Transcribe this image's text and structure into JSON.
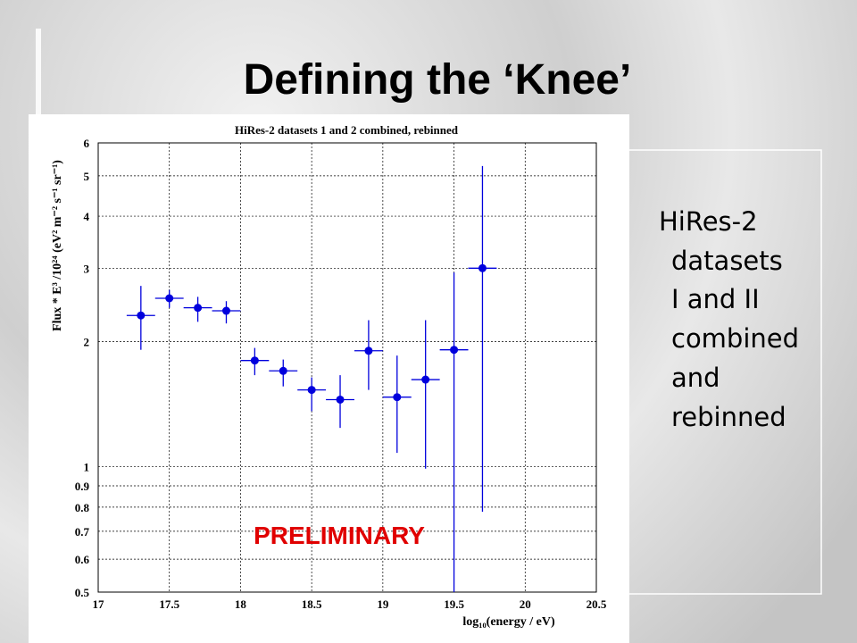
{
  "slide_title": "Defining the ‘Knee’",
  "bullet_lines": [
    "HiRes-2",
    "datasets",
    "I and II",
    "combined",
    "and",
    "rebinned"
  ],
  "chart_data": {
    "type": "errorbar",
    "title": "HiRes-2 datasets 1 and 2 combined,  rebinned",
    "x_label": "log₁₀(energy / eV)",
    "y_label": "Flux * E³ /10²⁴ (eV² m⁻² s⁻¹ sr⁻¹)",
    "annotation": "PRELIMINARY",
    "color": "#0000dd",
    "annotation_color": "#e00000",
    "log_y": true,
    "grid": true,
    "x": [
      17.3,
      17.5,
      17.7,
      17.9,
      18.1,
      18.3,
      18.5,
      18.7,
      18.9,
      19.1,
      19.3,
      19.5,
      19.7
    ],
    "values": [
      2.31,
      2.54,
      2.41,
      2.37,
      1.8,
      1.7,
      1.53,
      1.45,
      1.9,
      1.47,
      1.62,
      1.91,
      3.0
    ],
    "lower": [
      1.91,
      2.41,
      2.23,
      2.21,
      1.66,
      1.56,
      1.36,
      1.24,
      1.53,
      1.08,
      0.99,
      0.5,
      0.78
    ],
    "upper": [
      2.72,
      2.66,
      2.56,
      2.5,
      1.93,
      1.81,
      1.64,
      1.66,
      2.25,
      1.85,
      2.25,
      2.93,
      5.28
    ],
    "xerr": 0.1,
    "xlim": [
      17,
      20.5
    ],
    "xticks": [
      17,
      17.5,
      18,
      18.5,
      19,
      19.5,
      20,
      20.5
    ],
    "ylim": [
      0.5,
      6
    ],
    "yticks": [
      0.5,
      0.6,
      0.7,
      0.8,
      0.9,
      1,
      2,
      3,
      4,
      5,
      6
    ]
  }
}
